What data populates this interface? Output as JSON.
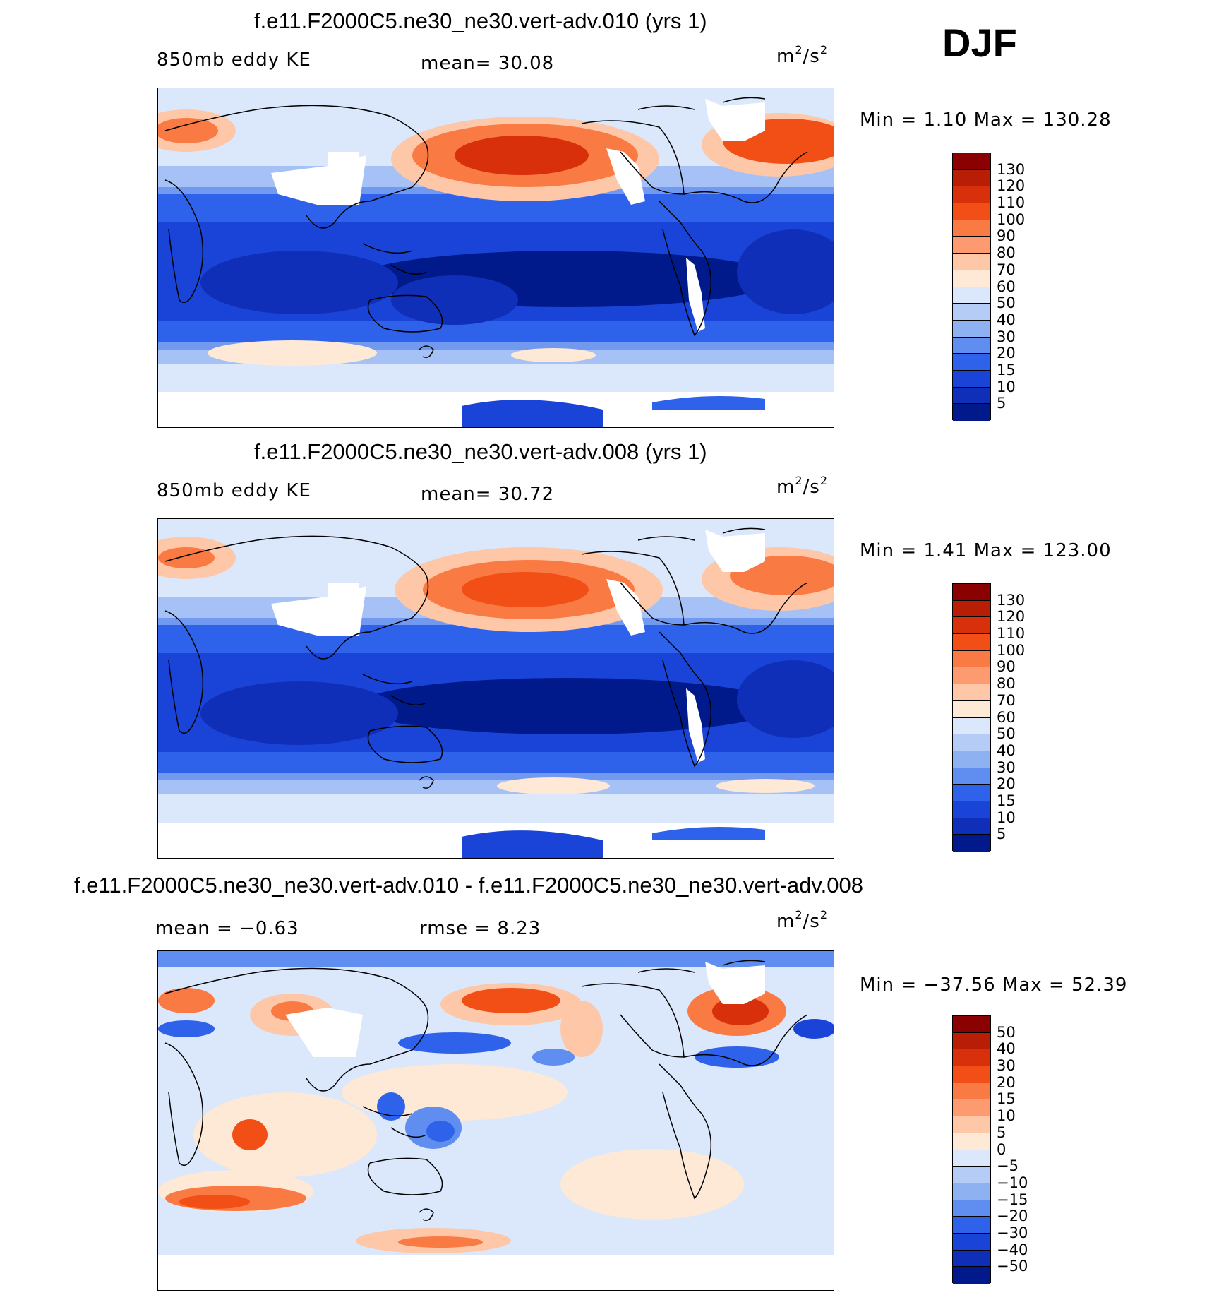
{
  "season": "DJF",
  "panels": [
    {
      "id": "case1",
      "title": "f.e11.F2000C5.ne30_ne30.vert-adv.010 (yrs 1)",
      "left_label": "850mb eddy KE",
      "center_label": "mean=   30.08",
      "units_base": "m",
      "units_exp1": "2",
      "units_mid": "/s",
      "units_exp2": "2",
      "minmax": "Min =    1.10 Max = 130.28",
      "colorbar": {
        "colors": [
          "#8b0000",
          "#b81d05",
          "#d8300b",
          "#f24f17",
          "#fa7a44",
          "#fd9a70",
          "#fdc7a8",
          "#fde9d6",
          "#dbe8fb",
          "#b5cdf6",
          "#8eb1f2",
          "#5f8ef0",
          "#2f62eb",
          "#1a44d8",
          "#0f2fb8",
          "#001a8c"
        ],
        "labels": [
          "130",
          "120",
          "110",
          "100",
          "90",
          "80",
          "70",
          "60",
          "50",
          "40",
          "30",
          "20",
          "15",
          "10",
          "5"
        ]
      }
    },
    {
      "id": "case2",
      "title": "f.e11.F2000C5.ne30_ne30.vert-adv.008 (yrs 1)",
      "left_label": "850mb eddy KE",
      "center_label": "mean=   30.72",
      "units_base": "m",
      "units_exp1": "2",
      "units_mid": "/s",
      "units_exp2": "2",
      "minmax": "Min =    1.41 Max = 123.00",
      "colorbar": {
        "colors": [
          "#8b0000",
          "#b81d05",
          "#d8300b",
          "#f24f17",
          "#fa7a44",
          "#fd9a70",
          "#fdc7a8",
          "#fde9d6",
          "#dbe8fb",
          "#b5cdf6",
          "#8eb1f2",
          "#5f8ef0",
          "#2f62eb",
          "#1a44d8",
          "#0f2fb8",
          "#001a8c"
        ],
        "labels": [
          "130",
          "120",
          "110",
          "100",
          "90",
          "80",
          "70",
          "60",
          "50",
          "40",
          "30",
          "20",
          "15",
          "10",
          "5"
        ]
      }
    },
    {
      "id": "diff",
      "title": "f.e11.F2000C5.ne30_ne30.vert-adv.010 - f.e11.F2000C5.ne30_ne30.vert-adv.008",
      "left_label": "mean =   −0.63",
      "center_label": "rmse =    8.23",
      "units_base": "m",
      "units_exp1": "2",
      "units_mid": "/s",
      "units_exp2": "2",
      "minmax": "Min = −37.56 Max =   52.39",
      "colorbar": {
        "colors": [
          "#8b0000",
          "#b81d05",
          "#d8300b",
          "#f24f17",
          "#fa7a44",
          "#fd9a70",
          "#fdc7a8",
          "#fde9d6",
          "#dbe8fb",
          "#b5cdf6",
          "#8eb1f2",
          "#5f8ef0",
          "#2f62eb",
          "#1a44d8",
          "#0f2fb8",
          "#001a8c"
        ],
        "labels": [
          "50",
          "40",
          "30",
          "20",
          "15",
          "10",
          "5",
          "0",
          "−5",
          "−10",
          "−15",
          "−20",
          "−30",
          "−40",
          "−50"
        ]
      }
    }
  ]
}
